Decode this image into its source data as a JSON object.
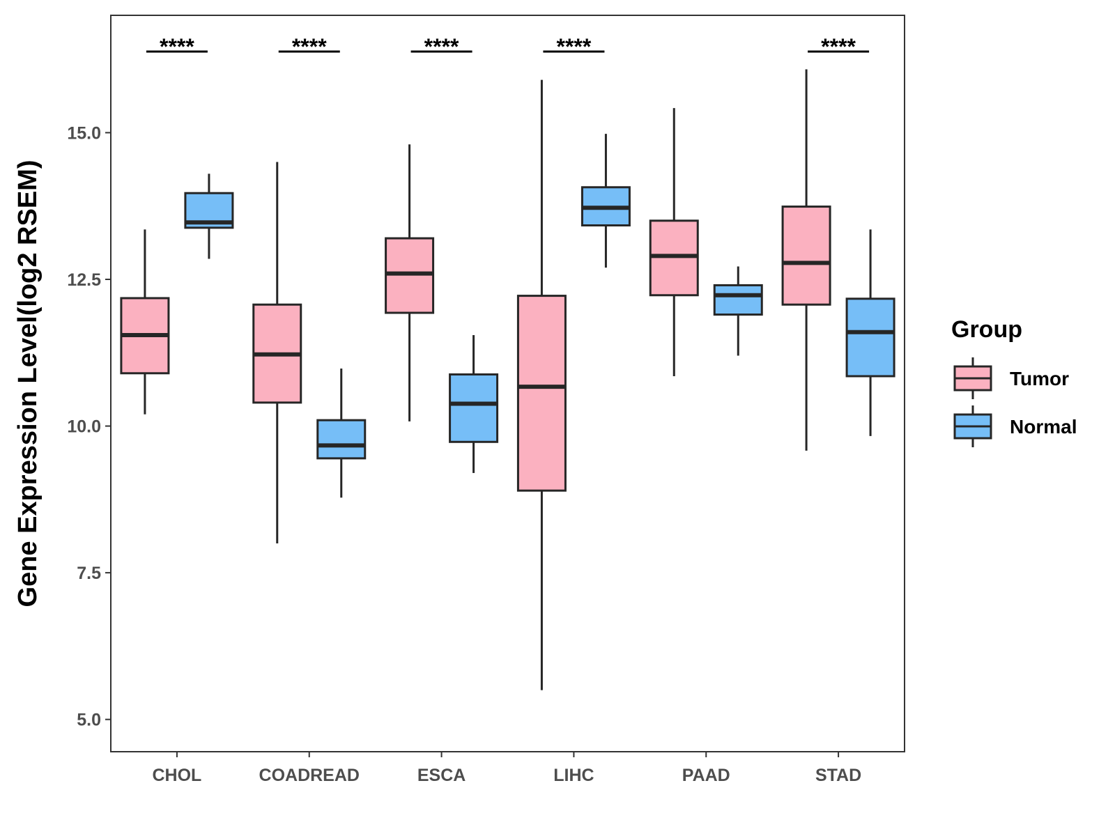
{
  "chart_data": {
    "type": "boxplot",
    "title": "",
    "xlabel": "",
    "ylabel": "Gene Expression Level(log2 RSEM)",
    "ylim": [
      4.45,
      17.0
    ],
    "yticks": [
      5.0,
      7.5,
      10.0,
      12.5,
      15.0
    ],
    "ytick_labels": [
      "5.0",
      "7.5",
      "10.0",
      "12.5",
      "15.0"
    ],
    "categories": [
      "CHOL",
      "COADREAD",
      "ESCA",
      "LIHC",
      "PAAD",
      "STAD"
    ],
    "legend": {
      "title": "Group",
      "position": "right",
      "entries": [
        "Tumor",
        "Normal"
      ]
    },
    "colors": {
      "Tumor": "#FBB1C0",
      "Normal": "#76BEF7",
      "outline": "#262626"
    },
    "series": [
      {
        "name": "Tumor",
        "boxes": [
          {
            "category": "CHOL",
            "min": 10.2,
            "q1": 10.9,
            "median": 11.55,
            "q3": 12.18,
            "max": 13.35
          },
          {
            "category": "COADREAD",
            "min": 8.0,
            "q1": 10.4,
            "median": 11.22,
            "q3": 12.07,
            "max": 14.5
          },
          {
            "category": "ESCA",
            "min": 10.08,
            "q1": 11.93,
            "median": 12.6,
            "q3": 13.2,
            "max": 14.8
          },
          {
            "category": "LIHC",
            "min": 5.5,
            "q1": 8.9,
            "median": 10.67,
            "q3": 12.22,
            "max": 15.9
          },
          {
            "category": "PAAD",
            "min": 10.85,
            "q1": 12.23,
            "median": 12.9,
            "q3": 13.5,
            "max": 15.42
          },
          {
            "category": "STAD",
            "min": 9.58,
            "q1": 12.07,
            "median": 12.78,
            "q3": 13.74,
            "max": 16.08
          }
        ]
      },
      {
        "name": "Normal",
        "boxes": [
          {
            "category": "CHOL",
            "min": 12.85,
            "q1": 13.38,
            "median": 13.47,
            "q3": 13.97,
            "max": 14.3
          },
          {
            "category": "COADREAD",
            "min": 8.78,
            "q1": 9.45,
            "median": 9.67,
            "q3": 10.1,
            "max": 10.98
          },
          {
            "category": "ESCA",
            "min": 9.2,
            "q1": 9.73,
            "median": 10.38,
            "q3": 10.88,
            "max": 11.55
          },
          {
            "category": "LIHC",
            "min": 12.7,
            "q1": 13.42,
            "median": 13.72,
            "q3": 14.07,
            "max": 14.98
          },
          {
            "category": "PAAD",
            "min": 11.2,
            "q1": 11.9,
            "median": 12.23,
            "q3": 12.4,
            "max": 12.72
          },
          {
            "category": "STAD",
            "min": 9.83,
            "q1": 10.85,
            "median": 11.6,
            "q3": 12.17,
            "max": 13.35
          }
        ]
      }
    ],
    "annotations": [
      {
        "category": "CHOL",
        "label": "****"
      },
      {
        "category": "COADREAD",
        "label": "****"
      },
      {
        "category": "ESCA",
        "label": "****"
      },
      {
        "category": "LIHC",
        "label": "****"
      },
      {
        "category": "STAD",
        "label": "****"
      }
    ]
  }
}
